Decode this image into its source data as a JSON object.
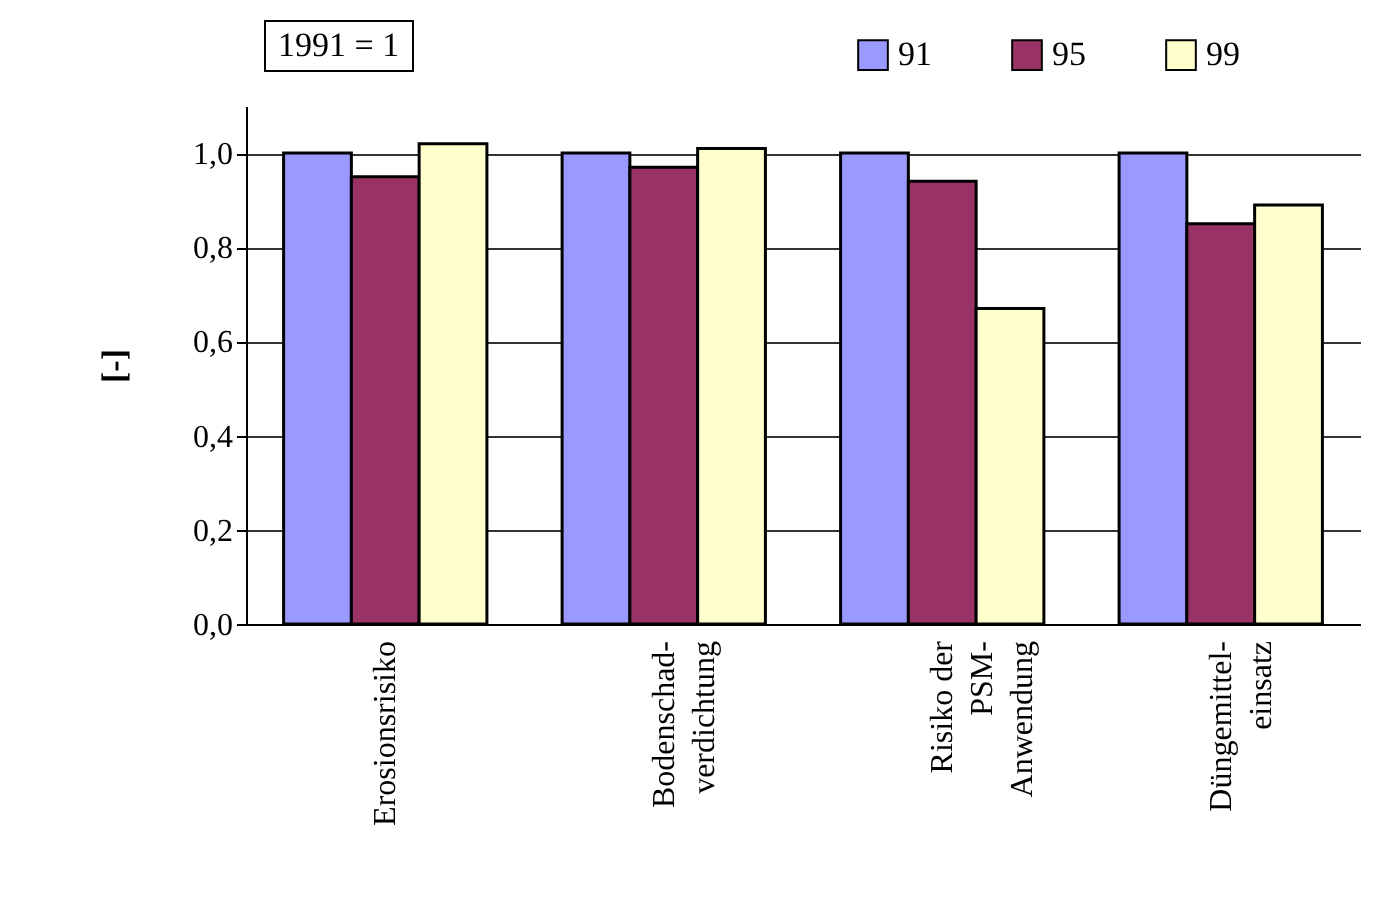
{
  "chart_data": {
    "type": "bar",
    "ylabel": "[-]",
    "annotations": [
      "1991 = 1"
    ],
    "categories": [
      "Erosionsrisiko",
      "Bodenschad-\nverdichtung",
      "Risiko der\nPSM-\nAnwendung",
      "Düngemittel-\neinsatz"
    ],
    "series": [
      {
        "name": "91",
        "color": "#9999ff",
        "values": [
          1.0,
          1.0,
          1.0,
          1.0
        ]
      },
      {
        "name": "95",
        "color": "#993366",
        "values": [
          0.95,
          0.97,
          0.94,
          0.85
        ]
      },
      {
        "name": "99",
        "color": "#ffffcc",
        "values": [
          1.02,
          1.01,
          0.67,
          0.89
        ]
      }
    ],
    "ylim": [
      0,
      1.1
    ],
    "yticks": [
      {
        "value": 0,
        "label": "0,0"
      },
      {
        "value": 0.2,
        "label": "0,2"
      },
      {
        "value": 0.4,
        "label": "0,4"
      },
      {
        "value": 0.6,
        "label": "0,6"
      },
      {
        "value": 0.8,
        "label": "0,8"
      },
      {
        "value": 1.0,
        "label": "1,0"
      }
    ],
    "grid": "y",
    "legend": "top right"
  }
}
